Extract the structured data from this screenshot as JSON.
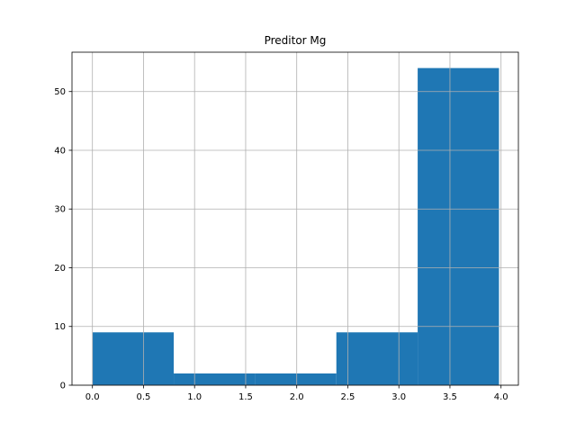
{
  "chart_data": {
    "type": "bar",
    "title": "Preditor Mg",
    "xlabel": "",
    "ylabel": "",
    "bins": [
      {
        "start": 0.0,
        "end": 0.796,
        "count": 9
      },
      {
        "start": 0.796,
        "end": 1.592,
        "count": 2
      },
      {
        "start": 1.592,
        "end": 2.388,
        "count": 2
      },
      {
        "start": 2.388,
        "end": 3.184,
        "count": 9
      },
      {
        "start": 3.184,
        "end": 3.98,
        "count": 54
      }
    ],
    "xlim": [
      -0.2,
      4.17
    ],
    "ylim": [
      0,
      56.7
    ],
    "x_ticks": [
      0.0,
      0.5,
      1.0,
      1.5,
      2.0,
      2.5,
      3.0,
      3.5,
      4.0
    ],
    "x_tick_labels": [
      "0.0",
      "0.5",
      "1.0",
      "1.5",
      "2.0",
      "2.5",
      "3.0",
      "3.5",
      "4.0"
    ],
    "y_ticks": [
      0,
      10,
      20,
      30,
      40,
      50
    ],
    "y_tick_labels": [
      "0",
      "10",
      "20",
      "30",
      "40",
      "50"
    ],
    "grid": true,
    "bar_color": "#1f77b4",
    "grid_color": "#b0b0b0"
  }
}
